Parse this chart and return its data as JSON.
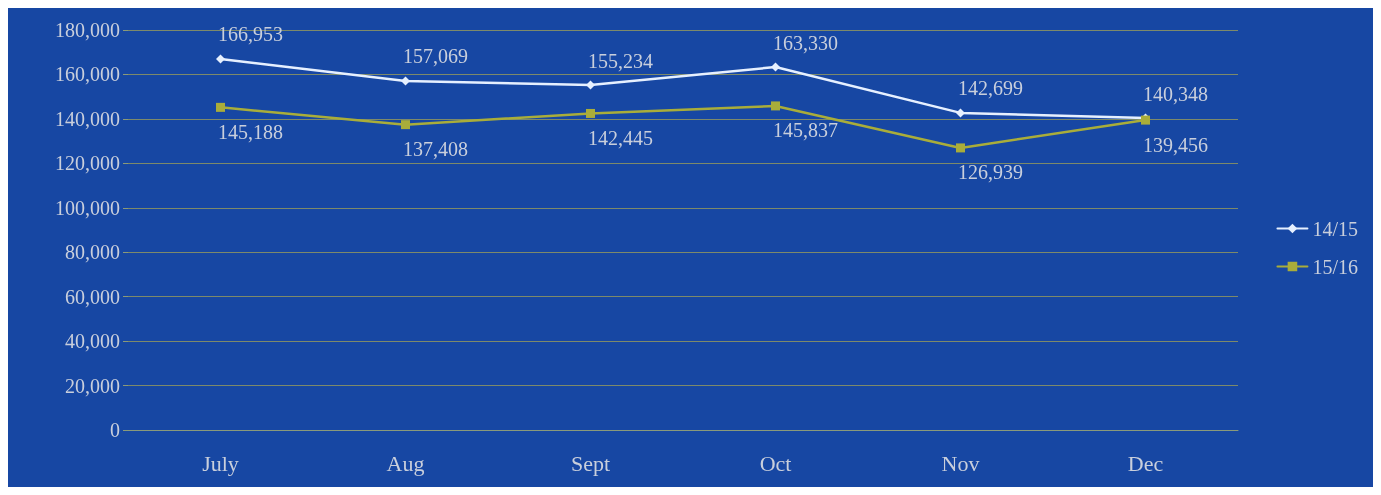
{
  "chart_data": {
    "type": "line",
    "categories": [
      "July",
      "Aug",
      "Sept",
      "Oct",
      "Nov",
      "Dec"
    ],
    "series": [
      {
        "name": "14/15",
        "color": "#e6f0ff",
        "marker": "diamond",
        "values": [
          166953,
          157069,
          155234,
          163330,
          142699,
          140348
        ],
        "value_labels": [
          "166,953",
          "157,069",
          "155,234",
          "163,330",
          "142,699",
          "140,348"
        ]
      },
      {
        "name": "15/16",
        "color": "#a9ad3a",
        "marker": "square",
        "values": [
          145188,
          137408,
          142445,
          145837,
          126939,
          139456
        ],
        "value_labels": [
          "145,188",
          "137,408",
          "142,445",
          "145,837",
          "126,939",
          "139,456"
        ]
      }
    ],
    "ylim": [
      0,
      180000
    ],
    "yticks": [
      {
        "value": 0,
        "label": "0"
      },
      {
        "value": 20000,
        "label": "20,000"
      },
      {
        "value": 40000,
        "label": "40,000"
      },
      {
        "value": 60000,
        "label": "60,000"
      },
      {
        "value": 80000,
        "label": "80,000"
      },
      {
        "value": 100000,
        "label": "100,000"
      },
      {
        "value": 120000,
        "label": "120,000"
      },
      {
        "value": 140000,
        "label": "140,000"
      },
      {
        "value": 160000,
        "label": "160,000"
      },
      {
        "value": 180000,
        "label": "180,000"
      }
    ],
    "grid": "y",
    "legend": "right"
  }
}
